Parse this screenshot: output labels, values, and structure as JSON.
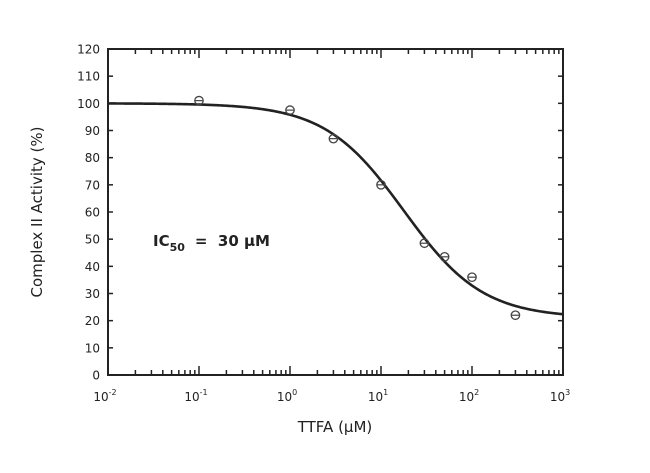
{
  "chart_data": {
    "type": "scatter",
    "title": "",
    "xlabel": "TTFA (µM)",
    "ylabel": "Complex II Activity (%)",
    "xscale": "log",
    "xlim": [
      0.01,
      1000
    ],
    "ylim": [
      0,
      120
    ],
    "x_ticks": [
      {
        "value": 0.01,
        "base": "10",
        "exp": "-2"
      },
      {
        "value": 0.1,
        "base": "10",
        "exp": "-1"
      },
      {
        "value": 1,
        "base": "10",
        "exp": "0"
      },
      {
        "value": 10,
        "base": "10",
        "exp": "1"
      },
      {
        "value": 100,
        "base": "10",
        "exp": "2"
      },
      {
        "value": 1000,
        "base": "10",
        "exp": "3"
      }
    ],
    "y_ticks": [
      "0",
      "10",
      "20",
      "30",
      "40",
      "50",
      "60",
      "70",
      "80",
      "90",
      "100",
      "110",
      "120"
    ],
    "grid": false,
    "points": [
      {
        "x": 0.1,
        "y": 101
      },
      {
        "x": 1,
        "y": 97.5
      },
      {
        "x": 3,
        "y": 87
      },
      {
        "x": 10,
        "y": 70
      },
      {
        "x": 30,
        "y": 48.5
      },
      {
        "x": 50,
        "y": 43.5
      },
      {
        "x": 100,
        "y": 36
      },
      {
        "x": 300,
        "y": 22
      }
    ],
    "fit_curve": {
      "model": "sigmoidal dose-response",
      "top": 100,
      "bottom": 21,
      "midpoint": 17.8,
      "hill": 1
    },
    "annotation": {
      "prefix": "IC",
      "subscript": "50",
      "text": "=  30 µM"
    },
    "colors": {
      "line": "#222222",
      "marker": "#444444"
    }
  }
}
